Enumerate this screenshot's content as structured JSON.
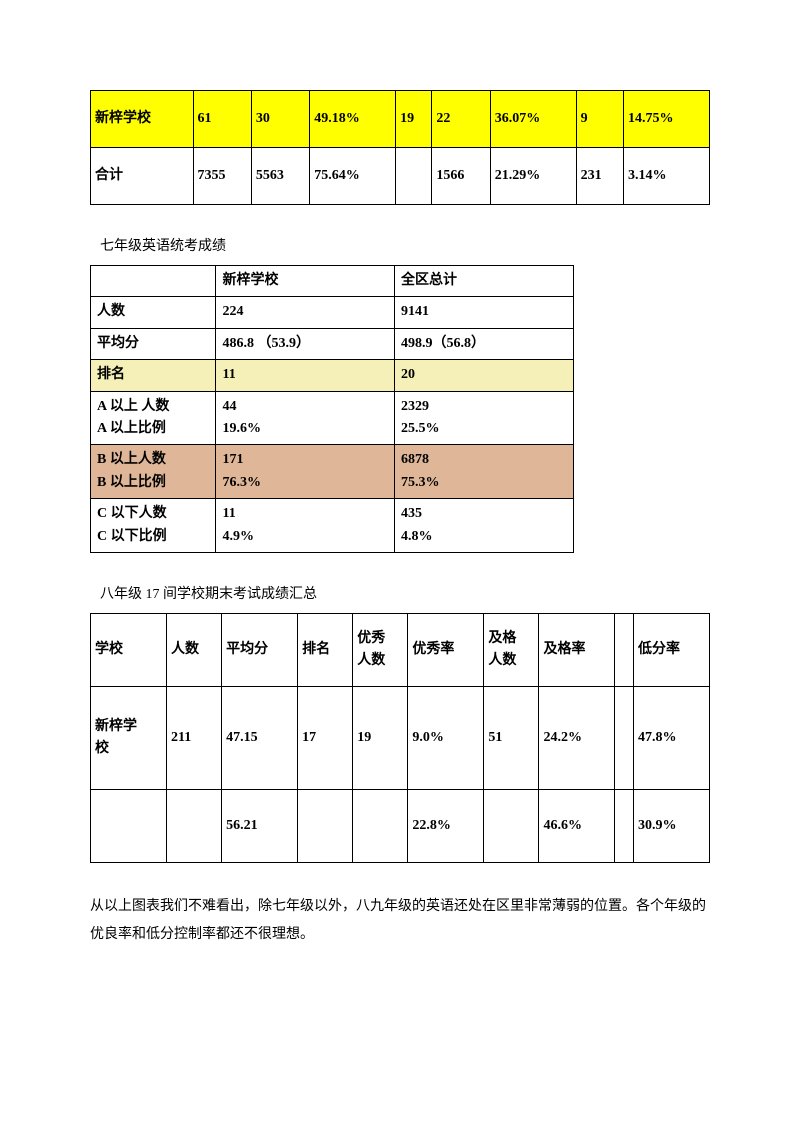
{
  "table1": {
    "rows": [
      {
        "highlight": true,
        "cells": [
          "新梓学校",
          "61",
          "30",
          "49.18%",
          "19",
          "22",
          "36.07%",
          "9",
          "14.75%"
        ]
      },
      {
        "highlight": false,
        "cells": [
          "合计",
          "7355",
          "5563",
          "75.64%",
          "",
          "1566",
          "21.29%",
          "231",
          "3.14%"
        ]
      }
    ],
    "row_colors": {
      "highlight": "#ffff00"
    }
  },
  "section2_title": "七年级英语统考成绩",
  "table2": {
    "rows": [
      {
        "style": "plain",
        "cells": [
          "",
          "新梓学校",
          "全区总计"
        ]
      },
      {
        "style": "plain",
        "cells": [
          "人数",
          "224",
          "9141"
        ]
      },
      {
        "style": "plain",
        "cells": [
          "平均分",
          "486.8 （53.9）",
          "498.9（56.8）"
        ]
      },
      {
        "style": "yellow",
        "cells": [
          "排名",
          "11",
          " 20"
        ]
      },
      {
        "style": "plain",
        "cells": [
          "A 以上 人数\nA 以上比例",
          "44\n19.6%",
          "2329\n25.5%"
        ]
      },
      {
        "style": "tan",
        "cells": [
          "B 以上人数\nB 以上比例",
          "171\n76.3%",
          "6878\n75.3%"
        ]
      },
      {
        "style": "plain",
        "cells": [
          "C 以下人数\nC 以下比例",
          "11\n4.9%",
          "435\n4.8%"
        ]
      }
    ],
    "row_colors": {
      "yellow": "#f4f0b8",
      "tan": "#dfb798"
    },
    "col_widths": [
      "26%",
      "37%",
      "37%"
    ]
  },
  "section3_title": "八年级 17 间学校期末考试成绩汇总",
  "table3": {
    "header": [
      "学校",
      "人数",
      "平均分",
      "排名",
      "优秀\n人数",
      "优秀率",
      "及格\n人数",
      "及格率",
      "",
      "低分率"
    ],
    "rows": [
      [
        "新梓学\n校",
        "211",
        "47.15",
        "17",
        "19",
        "9.0%",
        "51",
        "24.2%",
        "",
        "47.8%"
      ],
      [
        "",
        "",
        "56.21",
        "",
        "",
        "22.8%",
        "",
        "46.6%",
        "",
        "30.9%"
      ]
    ]
  },
  "paragraph": "从以上图表我们不难看出，除七年级以外，八九年级的英语还处在区里非常薄弱的位置。各个年级的优良率和低分控制率都还不很理想。"
}
